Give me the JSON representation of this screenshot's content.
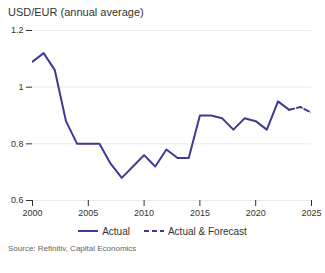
{
  "chart_data": {
    "type": "line",
    "title": "USD/EUR (annual average)",
    "caption": "Source: Refinitiv, Capital Economics",
    "x": [
      2000,
      2001,
      2002,
      2003,
      2004,
      2005,
      2006,
      2007,
      2008,
      2009,
      2010,
      2011,
      2012,
      2013,
      2014,
      2015,
      2016,
      2017,
      2018,
      2019,
      2020,
      2021,
      2022,
      2023,
      2024,
      2025
    ],
    "series": [
      {
        "name": "Actual",
        "color": "#3e3a96",
        "line_style": "solid",
        "values": [
          1.09,
          1.12,
          1.06,
          0.88,
          0.8,
          0.8,
          0.8,
          0.73,
          0.68,
          0.72,
          0.76,
          0.72,
          0.78,
          0.75,
          0.75,
          0.9,
          0.9,
          0.89,
          0.85,
          0.89,
          0.88,
          0.85,
          0.95,
          0.92,
          null,
          null
        ]
      },
      {
        "name": "Actual & Forecast",
        "color": "#3e3a96",
        "line_style": "dashed",
        "values": [
          null,
          null,
          null,
          null,
          null,
          null,
          null,
          null,
          null,
          null,
          null,
          null,
          null,
          null,
          null,
          null,
          null,
          null,
          null,
          null,
          null,
          null,
          null,
          0.92,
          0.93,
          0.91
        ]
      }
    ],
    "xlim": [
      2000,
      2025
    ],
    "xticks": [
      2000,
      2005,
      2010,
      2015,
      2020,
      2025
    ],
    "ylim": [
      0.6,
      1.2
    ],
    "yticks": [
      0.6,
      0.8,
      1,
      1.2
    ],
    "grid": true,
    "legend": "bottom"
  }
}
